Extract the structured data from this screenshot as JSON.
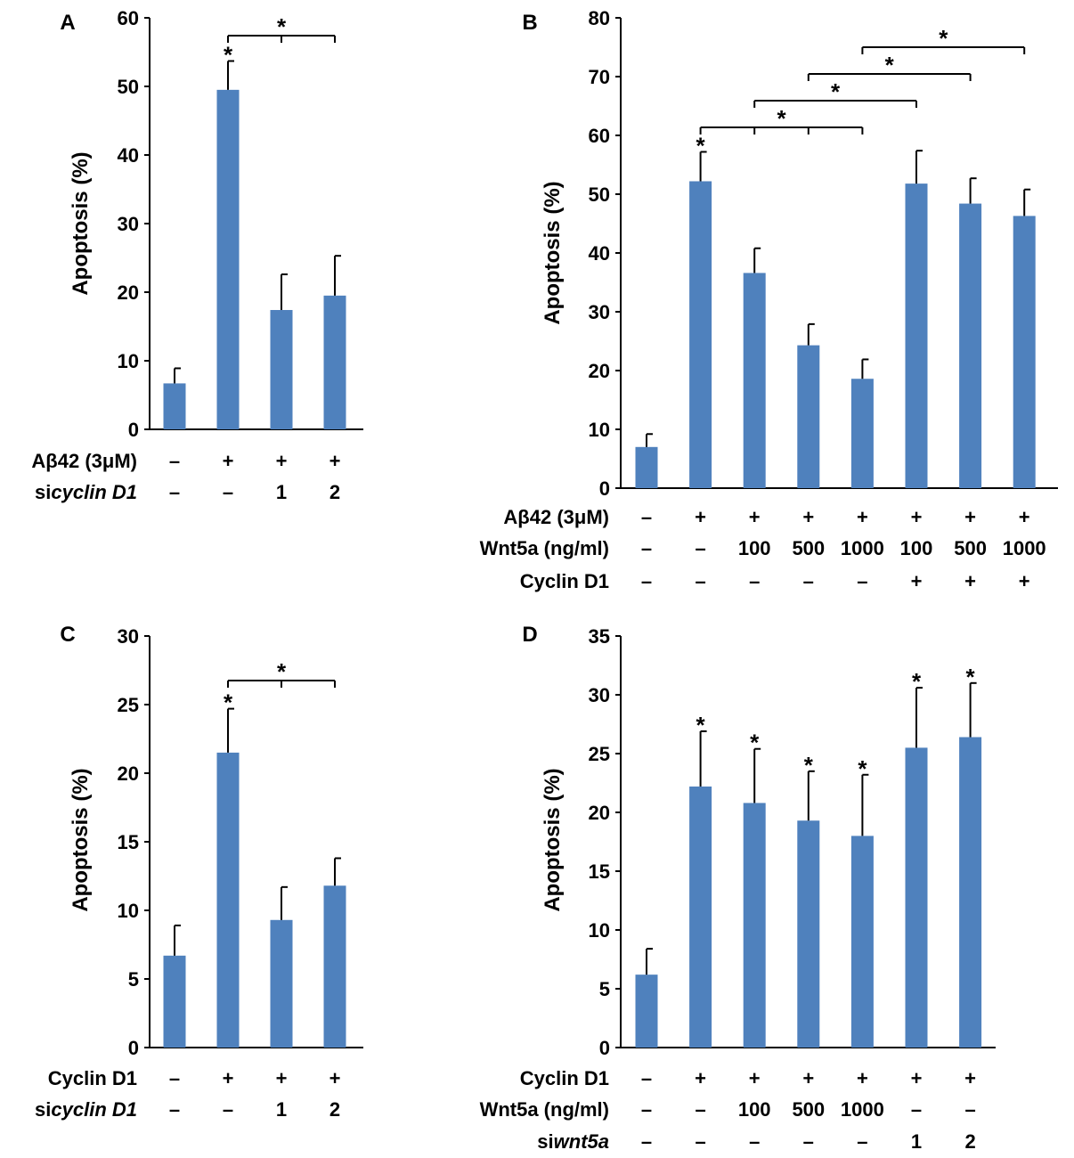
{
  "chart_data": [
    {
      "panel": "A",
      "type": "bar",
      "ylabel": "Apoptosis (%)",
      "ylim": [
        0,
        60
      ],
      "yticks": [
        0,
        10,
        20,
        30,
        40,
        50,
        60
      ],
      "values": [
        6.7,
        49.5,
        17.4,
        19.5
      ],
      "errors": [
        2.2,
        4.2,
        5.2,
        5.8
      ],
      "bar_stars": [
        "",
        "*",
        "",
        ""
      ],
      "conditions": [
        {
          "label": "Aβ42 (3μM)",
          "values": [
            "–",
            "+",
            "+",
            "+"
          ]
        },
        {
          "label": "sicyclin D1",
          "prefix": "si",
          "italic": "cyclin D1",
          "values": [
            "–",
            "–",
            "1",
            "2"
          ]
        }
      ],
      "brackets": [
        {
          "from": 1,
          "to": 3,
          "ticks": [
            1,
            2,
            3
          ],
          "level": 0,
          "label": "*"
        }
      ],
      "color": "#4f81bd"
    },
    {
      "panel": "B",
      "type": "bar",
      "ylabel": "Apoptosis (%)",
      "ylim": [
        0,
        80
      ],
      "yticks": [
        0,
        10,
        20,
        30,
        40,
        50,
        60,
        70,
        80
      ],
      "values": [
        7.0,
        52.2,
        36.6,
        24.3,
        18.6,
        51.8,
        48.4,
        46.3
      ],
      "errors": [
        2.2,
        5.0,
        4.2,
        3.6,
        3.3,
        5.6,
        4.3,
        4.5
      ],
      "bar_stars": [
        "",
        "*",
        "",
        "",
        "",
        "",
        "",
        ""
      ],
      "conditions": [
        {
          "label": "Aβ42 (3μM)",
          "values": [
            "–",
            "+",
            "+",
            "+",
            "+",
            "+",
            "+",
            "+"
          ]
        },
        {
          "label": "Wnt5a (ng/ml)",
          "values": [
            "–",
            "–",
            "100",
            "500",
            "1000",
            "100",
            "500",
            "1000"
          ]
        },
        {
          "label": "Cyclin D1",
          "values": [
            "–",
            "–",
            "–",
            "–",
            "–",
            "+",
            "+",
            "+"
          ]
        }
      ],
      "brackets": [
        {
          "from": 1,
          "to": 4,
          "ticks": [
            1,
            2,
            3,
            4
          ],
          "level": 0,
          "label": "*"
        },
        {
          "from": 2,
          "to": 5,
          "ticks": [
            2,
            5
          ],
          "level": 1,
          "label": "*"
        },
        {
          "from": 3,
          "to": 6,
          "ticks": [
            3,
            6
          ],
          "level": 2,
          "label": "*"
        },
        {
          "from": 4,
          "to": 7,
          "ticks": [
            4,
            7
          ],
          "level": 3,
          "label": "*"
        }
      ],
      "color": "#4f81bd"
    },
    {
      "panel": "C",
      "type": "bar",
      "ylabel": "Apoptosis (%)",
      "ylim": [
        0,
        30
      ],
      "yticks": [
        0,
        5,
        10,
        15,
        20,
        25,
        30
      ],
      "values": [
        6.7,
        21.5,
        9.3,
        11.8
      ],
      "errors": [
        2.2,
        3.2,
        2.4,
        2.0
      ],
      "bar_stars": [
        "",
        "*",
        "",
        ""
      ],
      "conditions": [
        {
          "label": "Cyclin D1",
          "values": [
            "–",
            "+",
            "+",
            "+"
          ]
        },
        {
          "label": "sicyclin D1",
          "prefix": "si",
          "italic": "cyclin D1",
          "values": [
            "–",
            "–",
            "1",
            "2"
          ]
        }
      ],
      "brackets": [
        {
          "from": 1,
          "to": 3,
          "ticks": [
            1,
            2,
            3
          ],
          "level": 0,
          "label": "*"
        }
      ],
      "color": "#4f81bd"
    },
    {
      "panel": "D",
      "type": "bar",
      "ylabel": "Apoptosis (%)",
      "ylim": [
        0,
        35
      ],
      "yticks": [
        0,
        5,
        10,
        15,
        20,
        25,
        30,
        35
      ],
      "values": [
        6.2,
        22.2,
        20.8,
        19.3,
        18.0,
        25.5,
        26.4
      ],
      "errors": [
        2.2,
        4.7,
        4.6,
        4.2,
        5.2,
        5.1,
        4.6
      ],
      "bar_stars": [
        "",
        "*",
        "*",
        "*",
        "*",
        "*",
        "*"
      ],
      "conditions": [
        {
          "label": "Cyclin D1",
          "values": [
            "–",
            "+",
            "+",
            "+",
            "+",
            "+",
            "+"
          ]
        },
        {
          "label": "Wnt5a (ng/ml)",
          "values": [
            "–",
            "–",
            "100",
            "500",
            "1000",
            "–",
            "–"
          ]
        },
        {
          "label": "siwnt5a",
          "prefix": "si",
          "italic": "wnt5a",
          "values": [
            "–",
            "–",
            "–",
            "–",
            "–",
            "1",
            "2"
          ]
        }
      ],
      "brackets": [],
      "color": "#4f81bd"
    }
  ]
}
